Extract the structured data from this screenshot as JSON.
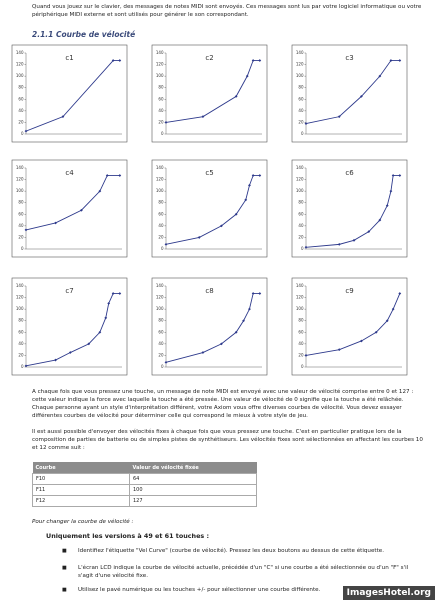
{
  "intro": "Quand vous jouez sur le clavier, des messages de notes MIDI sont envoyés. Ces messages sont lus par votre logiciel informatique ou votre périphérique MIDI externe et sont utilisés pour générer le son correspondant.",
  "heading": "2.1.1 Courbe de vélocité",
  "chart_data": [
    {
      "type": "line",
      "title": "c1",
      "x": [
        0,
        50,
        118,
        127
      ],
      "values": [
        5,
        30,
        127,
        127
      ],
      "xlim": [
        0,
        130
      ],
      "ylim": [
        0,
        140
      ],
      "yticks": [
        0,
        20,
        40,
        60,
        80,
        100,
        120,
        140
      ],
      "color": "#2e3a8c"
    },
    {
      "type": "line",
      "title": "c2",
      "x": [
        0,
        50,
        95,
        110,
        118,
        127
      ],
      "values": [
        20,
        30,
        65,
        100,
        127,
        127
      ],
      "xlim": [
        0,
        130
      ],
      "ylim": [
        0,
        140
      ],
      "yticks": [
        0,
        20,
        40,
        60,
        80,
        100,
        120,
        140
      ],
      "color": "#2e3a8c"
    },
    {
      "type": "line",
      "title": "c3",
      "x": [
        0,
        45,
        75,
        100,
        115,
        127
      ],
      "values": [
        18,
        30,
        65,
        100,
        127,
        127
      ],
      "xlim": [
        0,
        130
      ],
      "ylim": [
        0,
        140
      ],
      "yticks": [
        0,
        20,
        40,
        60,
        80,
        100,
        120,
        140
      ],
      "color": "#2e3a8c"
    },
    {
      "type": "line",
      "title": "c4",
      "x": [
        0,
        40,
        75,
        100,
        110,
        127
      ],
      "values": [
        33,
        45,
        67,
        100,
        127,
        127
      ],
      "xlim": [
        0,
        130
      ],
      "ylim": [
        0,
        140
      ],
      "yticks": [
        0,
        20,
        40,
        60,
        80,
        100,
        120,
        140
      ],
      "color": "#2e3a8c"
    },
    {
      "type": "line",
      "title": "c5",
      "x": [
        0,
        45,
        75,
        95,
        108,
        113,
        118,
        127
      ],
      "values": [
        8,
        20,
        40,
        60,
        85,
        110,
        127,
        127
      ],
      "xlim": [
        0,
        130
      ],
      "ylim": [
        0,
        140
      ],
      "yticks": [
        0,
        20,
        40,
        60,
        80,
        100,
        120,
        140
      ],
      "color": "#2e3a8c"
    },
    {
      "type": "line",
      "title": "c6",
      "x": [
        0,
        45,
        65,
        85,
        100,
        110,
        115,
        118,
        127
      ],
      "values": [
        3,
        8,
        15,
        30,
        50,
        75,
        100,
        127,
        127
      ],
      "xlim": [
        0,
        130
      ],
      "ylim": [
        0,
        140
      ],
      "yticks": [
        0,
        20,
        40,
        60,
        80,
        100,
        120,
        140
      ],
      "color": "#2e3a8c"
    },
    {
      "type": "line",
      "title": "c7",
      "x": [
        0,
        40,
        60,
        85,
        100,
        108,
        112,
        118,
        127
      ],
      "values": [
        2,
        12,
        25,
        40,
        60,
        85,
        110,
        127,
        127
      ],
      "xlim": [
        0,
        130
      ],
      "ylim": [
        0,
        140
      ],
      "yticks": [
        0,
        20,
        40,
        60,
        80,
        100,
        120,
        140
      ],
      "color": "#2e3a8c"
    },
    {
      "type": "line",
      "title": "c8",
      "x": [
        0,
        50,
        75,
        95,
        105,
        113,
        118,
        127
      ],
      "values": [
        8,
        25,
        40,
        60,
        80,
        100,
        127,
        127
      ],
      "xlim": [
        0,
        130
      ],
      "ylim": [
        0,
        140
      ],
      "yticks": [
        0,
        20,
        40,
        60,
        80,
        100,
        120,
        140
      ],
      "color": "#2e3a8c"
    },
    {
      "type": "line",
      "title": "c9",
      "x": [
        0,
        45,
        75,
        95,
        110,
        118,
        127
      ],
      "values": [
        20,
        30,
        45,
        60,
        80,
        100,
        127
      ],
      "xlim": [
        0,
        130
      ],
      "ylim": [
        0,
        140
      ],
      "yticks": [
        0,
        20,
        40,
        60,
        80,
        100,
        120,
        140
      ],
      "color": "#2e3a8c"
    }
  ],
  "para1": "A chaque fois que vous pressez une touche, un message de note MIDI est envoyé avec une valeur de vélocité comprise entre 0 et 127 : cette valeur indique la force avec laquelle la touche a été pressée. Une valeur de vélocité de 0 signifie que la touche a été relâchée. Chaque personne ayant un style d'interprétation différent, votre Axiom vous offre diverses courbes de vélocité. Vous devez essayer différentes courbes de vélocité pour déterminer celle qui correspond le mieux à votre style de jeu.",
  "para2": "Il est aussi possible d'envoyer des vélocités fixes à chaque fois que vous pressez une touche. C'est en particulier pratique lors de la composition de parties de batterie ou de simples pistes de synthétiseurs. Les vélocités fixes sont sélectionnées en affectant les courbes 10 et 12 comme suit :",
  "table": {
    "headers": [
      "Courbe",
      "Valeur de vélocité fixée"
    ],
    "rows": [
      [
        "F10",
        64
      ],
      [
        "F11",
        100
      ],
      [
        "F12",
        127
      ]
    ]
  },
  "change_heading": "Pour changer la courbe de vélocité :",
  "versions_heading": "Uniquement les versions à 49 et 61 touches :",
  "bullets": [
    "Identifiez l'étiquette \"Vel Curve\" (courbe de vélocité). Pressez les deux boutons au dessus de cette étiquette.",
    "L'écran LCD indique la courbe de vélocité actuelle, précédée d'un \"C\" si une courbe a été sélectionnée ou d'un \"F\" s'il s'agit d'une vélocité fixe.",
    "Utilisez le pavé numérique ou les touches +/- pour sélectionner une courbe différente."
  ],
  "watermark": "ImagesHotel.org"
}
